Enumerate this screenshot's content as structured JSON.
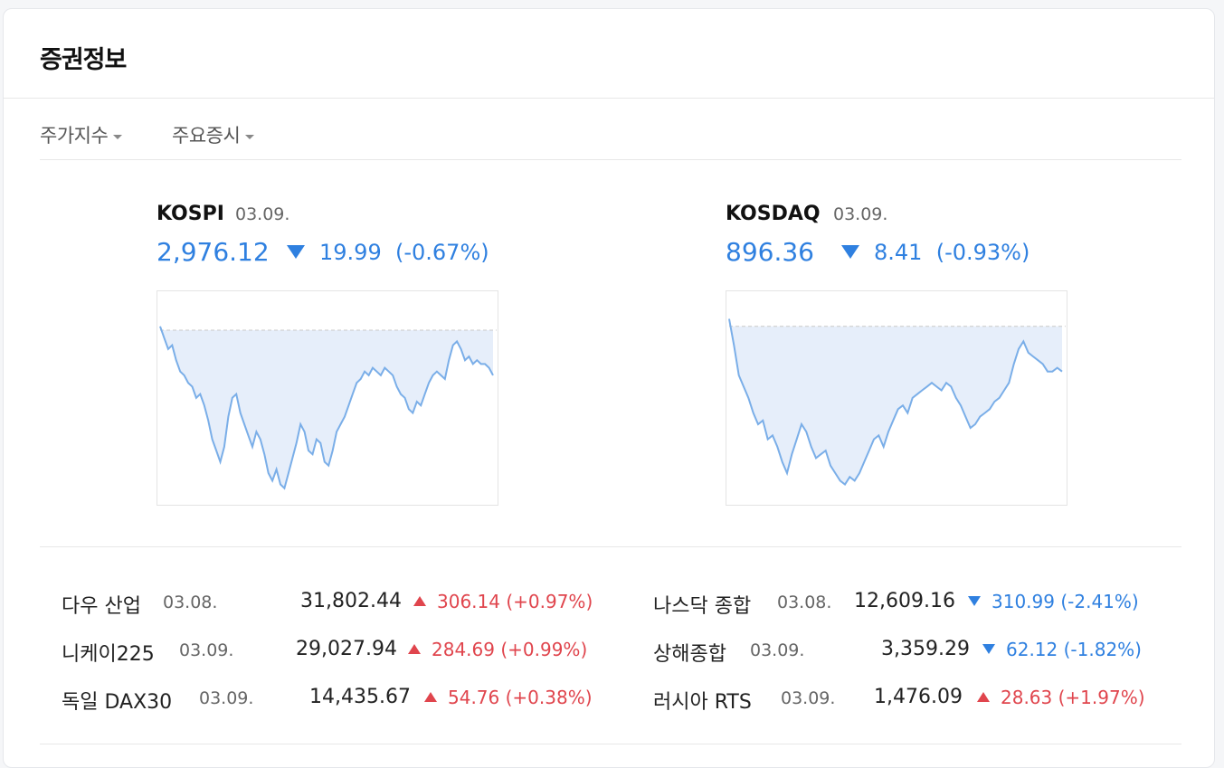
{
  "header": {
    "title": "증권정보"
  },
  "tabs": [
    {
      "label": "주가지수"
    },
    {
      "label": "주요증시"
    }
  ],
  "indices": [
    {
      "name": "KOSPI",
      "date": "03.09.",
      "value": "2,976.12",
      "change": "19.99",
      "percent": "(-0.67%)",
      "direction": "down",
      "chart_data": {
        "type": "area",
        "baseline": 0.12,
        "values": [
          0.1,
          0.16,
          0.22,
          0.2,
          0.28,
          0.34,
          0.36,
          0.4,
          0.42,
          0.48,
          0.46,
          0.52,
          0.6,
          0.7,
          0.76,
          0.82,
          0.74,
          0.58,
          0.48,
          0.46,
          0.56,
          0.62,
          0.68,
          0.74,
          0.66,
          0.7,
          0.78,
          0.88,
          0.92,
          0.86,
          0.94,
          0.96,
          0.88,
          0.8,
          0.72,
          0.62,
          0.66,
          0.76,
          0.78,
          0.7,
          0.72,
          0.82,
          0.84,
          0.76,
          0.66,
          0.62,
          0.58,
          0.52,
          0.46,
          0.4,
          0.38,
          0.34,
          0.36,
          0.32,
          0.34,
          0.36,
          0.32,
          0.34,
          0.36,
          0.42,
          0.46,
          0.48,
          0.54,
          0.56,
          0.5,
          0.52,
          0.46,
          0.4,
          0.36,
          0.34,
          0.36,
          0.38,
          0.28,
          0.2,
          0.18,
          0.22,
          0.28,
          0.26,
          0.3,
          0.28,
          0.3,
          0.3,
          0.32,
          0.36
        ]
      }
    },
    {
      "name": "KOSDAQ",
      "date": "03.09.",
      "value": "896.36",
      "change": "8.41",
      "percent": "(-0.93%)",
      "direction": "down",
      "chart_data": {
        "type": "area",
        "baseline": 0.1,
        "values": [
          0.06,
          0.2,
          0.36,
          0.42,
          0.48,
          0.56,
          0.62,
          0.6,
          0.7,
          0.68,
          0.74,
          0.82,
          0.88,
          0.78,
          0.7,
          0.62,
          0.66,
          0.74,
          0.8,
          0.78,
          0.76,
          0.84,
          0.88,
          0.92,
          0.94,
          0.9,
          0.92,
          0.88,
          0.82,
          0.76,
          0.7,
          0.68,
          0.74,
          0.66,
          0.6,
          0.54,
          0.52,
          0.56,
          0.48,
          0.46,
          0.44,
          0.42,
          0.4,
          0.42,
          0.44,
          0.4,
          0.42,
          0.48,
          0.52,
          0.58,
          0.64,
          0.62,
          0.58,
          0.56,
          0.54,
          0.5,
          0.48,
          0.44,
          0.4,
          0.3,
          0.22,
          0.18,
          0.24,
          0.26,
          0.28,
          0.3,
          0.34,
          0.34,
          0.32,
          0.34
        ]
      }
    }
  ],
  "markets": {
    "left": [
      {
        "name": "다우 산업",
        "date": "03.08.",
        "value": "31,802.44",
        "change": "306.14",
        "percent": "(+0.97%)",
        "direction": "up"
      },
      {
        "name": "니케이225",
        "date": "03.09.",
        "value": "29,027.94",
        "change": "284.69",
        "percent": "(+0.99%)",
        "direction": "up"
      },
      {
        "name": "독일 DAX30",
        "date": "03.09.",
        "value": "14,435.67",
        "change": "54.76",
        "percent": "(+0.38%)",
        "direction": "up"
      }
    ],
    "right": [
      {
        "name": "나스닥 종합",
        "date": "03.08.",
        "value": "12,609.16",
        "change": "310.99",
        "percent": "(-2.41%)",
        "direction": "down"
      },
      {
        "name": "상해종합",
        "date": "03.09.",
        "value": "3,359.29",
        "change": "62.12",
        "percent": "(-1.82%)",
        "direction": "down"
      },
      {
        "name": "러시아 RTS",
        "date": "03.09.",
        "value": "1,476.09",
        "change": "28.63",
        "percent": "(+1.97%)",
        "direction": "up"
      }
    ]
  },
  "colors": {
    "up": "#e0454d",
    "down": "#2f80e0",
    "chart_fill": "#e6eefa",
    "chart_line": "#7aaee8"
  }
}
